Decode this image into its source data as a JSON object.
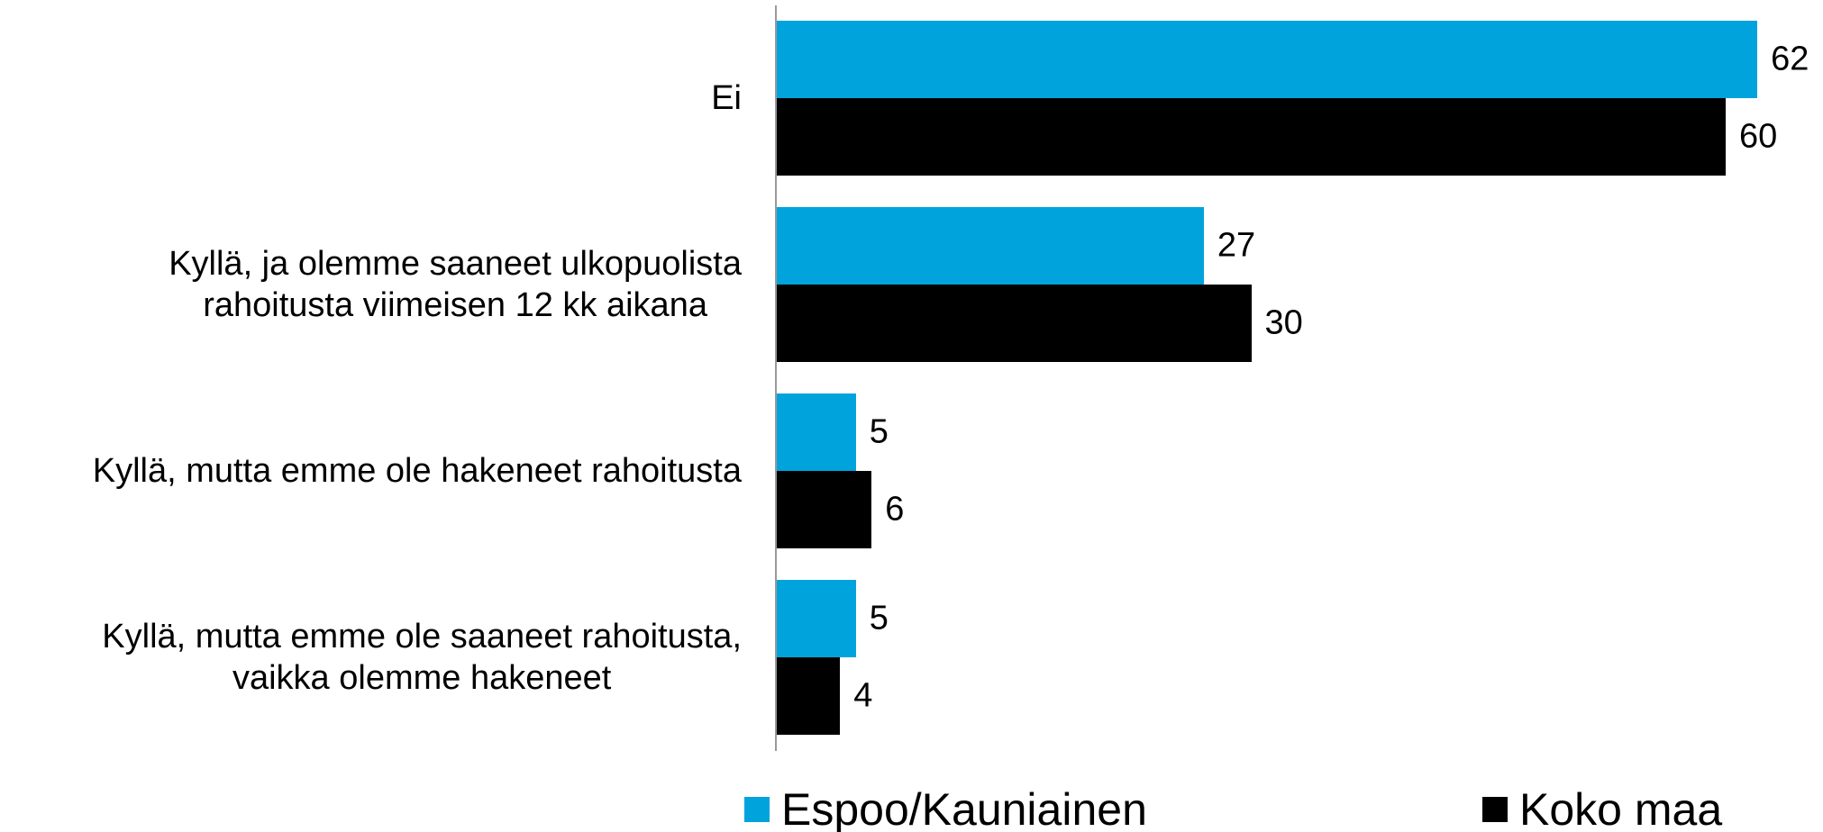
{
  "chart_data": {
    "type": "bar",
    "orientation": "horizontal",
    "categories": [
      "Ei",
      "Kyllä, ja olemme saaneet ulkopuolista\nrahoitusta viimeisen 12 kk aikana",
      "Kyllä, mutta emme ole hakeneet rahoitusta",
      "Kyllä, mutta emme ole saaneet rahoitusta,\nvaikka olemme hakeneet"
    ],
    "series": [
      {
        "name": "Espoo/Kauniainen",
        "color": "#00a3dc",
        "values": [
          62,
          27,
          5,
          5
        ]
      },
      {
        "name": "Koko maa",
        "color": "#000000",
        "values": [
          60,
          30,
          6,
          4
        ]
      }
    ],
    "legend": "bottom"
  }
}
